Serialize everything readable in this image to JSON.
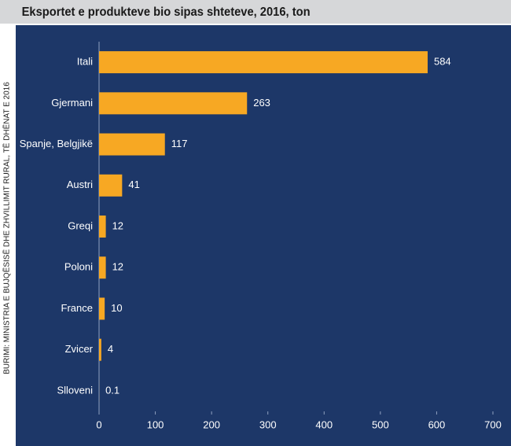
{
  "chart_data": {
    "type": "bar",
    "orientation": "horizontal",
    "title": "Eksportet e produkteve bio sipas shteteve,  2016, ton",
    "source": "BURIMI: MINISTRIA E BUJQËSISË DHE ZHVILLIMIT RURAL, TË DHËNAT E 2016",
    "categories": [
      "Itali",
      "Gjermani",
      "Spanje, Belgjikë",
      "Austri",
      "Greqi",
      "Poloni",
      "France",
      "Zvicer",
      "Slloveni"
    ],
    "values": [
      584,
      263,
      117,
      41,
      12,
      12,
      10,
      4,
      0.1
    ],
    "color": "#f7a823",
    "xlim": [
      0,
      700
    ],
    "xticks": [
      0,
      100,
      200,
      300,
      400,
      500,
      600,
      700
    ],
    "grid": false
  }
}
